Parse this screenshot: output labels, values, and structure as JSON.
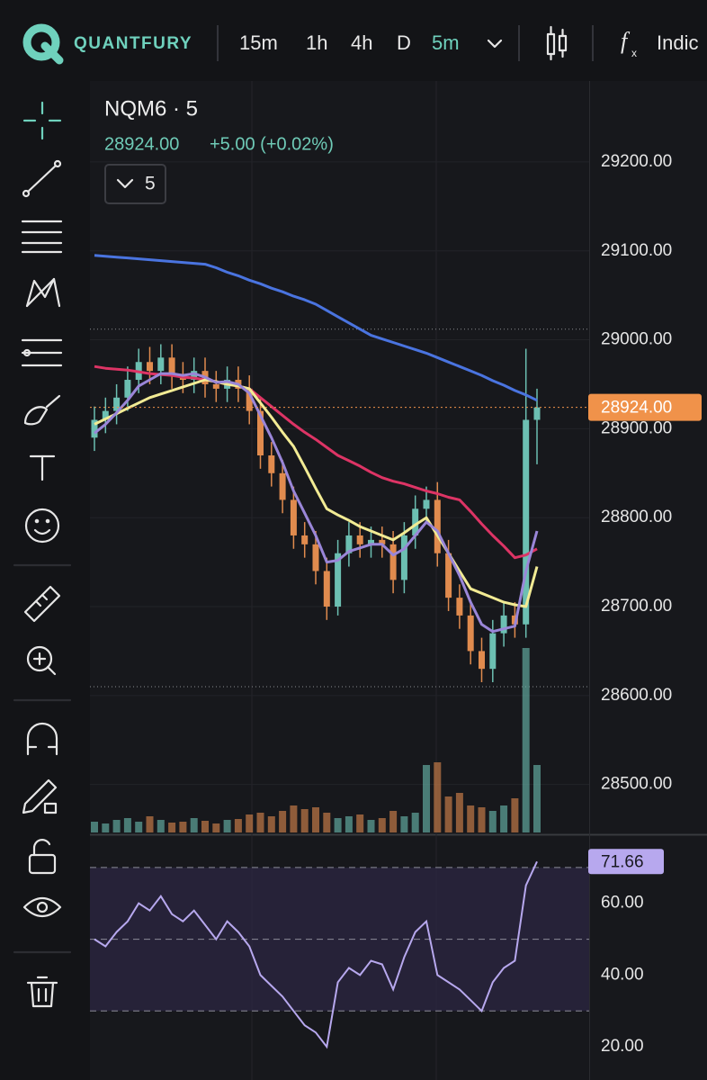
{
  "header": {
    "brand": "QUANTFURY",
    "timeframes": [
      "15m",
      "1h",
      "4h",
      "D",
      "5m"
    ],
    "active_timeframe": 4,
    "indicators": "Indic"
  },
  "legend": {
    "symbol": "NQM6 · 5",
    "price": "28924.00",
    "change": "+5.00 (+0.02%)",
    "collapse": "5"
  },
  "chart_data": {
    "type": "candlestick",
    "ylim": [
      28446,
      29291
    ],
    "yticks": [
      {
        "value": 29200,
        "label": "29200.00"
      },
      {
        "value": 29100,
        "label": "29100.00"
      },
      {
        "value": 29000,
        "label": "29000.00"
      },
      {
        "value": 28900,
        "label": "28900.00"
      },
      {
        "value": 28800,
        "label": "28800.00"
      },
      {
        "value": 28700,
        "label": "28700.00"
      },
      {
        "value": 28600,
        "label": "28600.00"
      },
      {
        "value": 28500,
        "label": "28500.00"
      }
    ],
    "last_price": {
      "value": 28924,
      "label": "28924.00",
      "color": "#f0924a"
    },
    "session_high": 29012,
    "session_low": 28610,
    "up_color": "#6cbfb2",
    "down_color": "#e08b4e",
    "candles": {
      "open": [
        28890,
        28910,
        28920,
        28935,
        28955,
        28975,
        28965,
        28980,
        28960,
        28955,
        28965,
        28950,
        28945,
        28955,
        28945,
        28920,
        28870,
        28850,
        28820,
        28780,
        28770,
        28740,
        28700,
        28760,
        28780,
        28770,
        28775,
        28770,
        28730,
        28780,
        28810,
        28820,
        28760,
        28710,
        28690,
        28650,
        28630,
        28670,
        28690,
        28680,
        28910
      ],
      "high": [
        28925,
        28935,
        28950,
        28970,
        28990,
        28992,
        28995,
        28995,
        28975,
        28980,
        28980,
        28965,
        28970,
        28970,
        28960,
        28935,
        28885,
        28865,
        28835,
        28795,
        28785,
        28755,
        28775,
        28795,
        28795,
        28790,
        28790,
        28785,
        28795,
        28825,
        28835,
        28840,
        28775,
        28725,
        28705,
        28665,
        28685,
        28705,
        28705,
        28990,
        28945
      ],
      "low": [
        28875,
        28895,
        28905,
        28920,
        28940,
        28950,
        28950,
        28945,
        28940,
        28940,
        28935,
        28930,
        28930,
        28930,
        28905,
        28855,
        28835,
        28805,
        28765,
        28755,
        28725,
        28685,
        28690,
        28745,
        28755,
        28755,
        28755,
        28715,
        28715,
        28765,
        28795,
        28745,
        28695,
        28675,
        28635,
        28615,
        28615,
        28655,
        28665,
        28665,
        28860
      ],
      "close": [
        28910,
        28920,
        28935,
        28955,
        28975,
        28965,
        28980,
        28960,
        28955,
        28965,
        28950,
        28945,
        28955,
        28945,
        28920,
        28870,
        28850,
        28820,
        28780,
        28770,
        28740,
        28700,
        28760,
        28780,
        28770,
        28775,
        28770,
        28730,
        28780,
        28810,
        28820,
        28760,
        28710,
        28690,
        28650,
        28630,
        28670,
        28690,
        28680,
        28910,
        28924
      ]
    },
    "moving_averages": [
      {
        "color": "#4a74e0",
        "values": [
          29095,
          29094,
          29093,
          29092,
          29091,
          29090,
          29089,
          29088,
          29087,
          29086,
          29085,
          29081,
          29076,
          29072,
          29067,
          29063,
          29058,
          29054,
          29049,
          29045,
          29040,
          29033,
          29026,
          29019,
          29012,
          29005,
          29001,
          28997,
          28993,
          28989,
          28985,
          28980,
          28975,
          28970,
          28965,
          28960,
          28954,
          28949,
          28943,
          28938,
          28932
        ]
      },
      {
        "color": "#dd3465",
        "values": [
          28970,
          28968,
          28967,
          28966,
          28964,
          28962,
          28961,
          28960,
          28958,
          28957,
          28955,
          28953,
          28950,
          28948,
          28945,
          28935,
          28925,
          28915,
          28905,
          28896,
          28888,
          28879,
          28870,
          28864,
          28858,
          28851,
          28845,
          28841,
          28838,
          28834,
          28830,
          28827,
          28823,
          28820,
          28807,
          28793,
          28780,
          28768,
          28755,
          28758,
          28765
        ]
      },
      {
        "color": "#f2eb94",
        "values": [
          28905,
          28911,
          28917,
          28923,
          28929,
          28935,
          28939,
          28943,
          28947,
          28951,
          28955,
          28953,
          28950,
          28948,
          28945,
          28929,
          28913,
          28896,
          28880,
          28857,
          28833,
          28810,
          28803,
          28797,
          28790,
          28785,
          28780,
          28775,
          28783,
          28792,
          28800,
          28780,
          28760,
          28740,
          28720,
          28715,
          28710,
          28705,
          28702,
          28700,
          28745
        ]
      },
      {
        "color": "#9a86d8",
        "values": [
          28895,
          28905,
          28918,
          28932,
          28948,
          28955,
          28962,
          28962,
          28960,
          28962,
          28958,
          28952,
          28953,
          28950,
          28940,
          28915,
          28890,
          28862,
          28830,
          28805,
          28780,
          28750,
          28752,
          28762,
          28766,
          28770,
          28770,
          28758,
          28765,
          28780,
          28795,
          28785,
          28760,
          28735,
          28705,
          28680,
          28672,
          28675,
          28678,
          28740,
          28785
        ]
      }
    ],
    "volume_ylim": [
      0,
      835
    ],
    "volume": [
      12,
      10,
      14,
      16,
      12,
      18,
      14,
      11,
      12,
      16,
      13,
      10,
      14,
      15,
      20,
      22,
      18,
      24,
      30,
      26,
      28,
      22,
      16,
      18,
      20,
      14,
      16,
      24,
      18,
      22,
      75,
      78,
      40,
      44,
      30,
      28,
      24,
      30,
      38,
      205,
      75
    ],
    "rsi": {
      "ylim": [
        10.75,
        78.75
      ],
      "yticks": [
        {
          "value": 60,
          "label": "60.00"
        },
        {
          "value": 40,
          "label": "40.00"
        },
        {
          "value": 20,
          "label": "20.00"
        }
      ],
      "levels": [
        70,
        50,
        30
      ],
      "color": "#b7a8ee",
      "last": 71.66,
      "values": [
        50,
        48,
        52,
        55,
        60,
        58,
        62,
        57,
        55,
        58,
        54,
        50,
        55,
        52,
        48,
        40,
        37,
        34,
        30,
        26,
        24,
        20,
        38,
        42,
        40,
        44,
        43,
        36,
        45,
        52,
        55,
        40,
        38,
        36,
        33,
        30,
        38,
        42,
        44,
        65,
        71.66
      ]
    }
  }
}
